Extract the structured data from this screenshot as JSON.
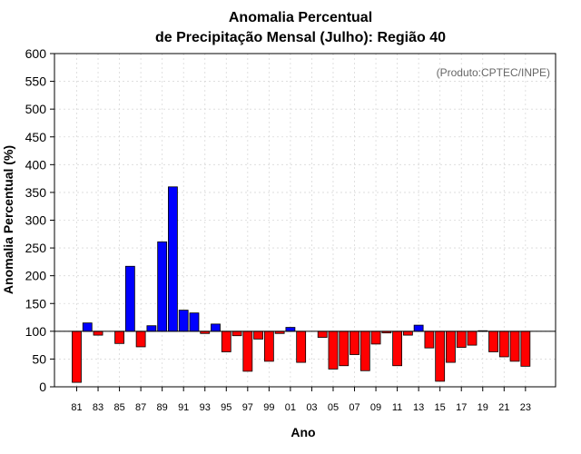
{
  "chart_data": {
    "type": "bar",
    "title": "Anomalia Percentual",
    "subtitle": "de Precipitação Mensal (Julho): Região 40",
    "xlabel": "Ano",
    "ylabel": "Anomalia Percentual (%)",
    "annotation": "(Produto:CPTEC/INPE)",
    "baseline": 100,
    "ylim": [
      0,
      600
    ],
    "yticks": [
      0,
      50,
      100,
      150,
      200,
      250,
      300,
      350,
      400,
      450,
      500,
      550,
      600
    ],
    "grid": true,
    "categories": [
      "81",
      "82",
      "83",
      "84",
      "85",
      "86",
      "87",
      "88",
      "89",
      "90",
      "91",
      "92",
      "93",
      "94",
      "95",
      "96",
      "97",
      "98",
      "99",
      "00",
      "01",
      "02",
      "03",
      "04",
      "05",
      "06",
      "07",
      "08",
      "09",
      "10",
      "11",
      "12",
      "13",
      "14",
      "15",
      "16",
      "17",
      "18",
      "19",
      "20",
      "21",
      "22",
      "23"
    ],
    "xtick_labels": [
      "81",
      "83",
      "85",
      "87",
      "89",
      "91",
      "93",
      "95",
      "97",
      "99",
      "01",
      "03",
      "05",
      "07",
      "09",
      "11",
      "13",
      "15",
      "17",
      "19",
      "21",
      "23"
    ],
    "values": [
      8,
      115,
      93,
      100,
      78,
      217,
      72,
      110,
      261,
      360,
      138,
      133,
      96,
      113,
      63,
      92,
      28,
      86,
      46,
      96,
      107,
      44,
      100,
      89,
      32,
      38,
      58,
      29,
      77,
      97,
      38,
      93,
      111,
      70,
      10,
      44,
      71,
      75,
      101,
      63,
      54,
      46,
      37
    ],
    "colors": {
      "above": "#0000ff",
      "below": "#ff0000",
      "outline": "#000000"
    }
  }
}
